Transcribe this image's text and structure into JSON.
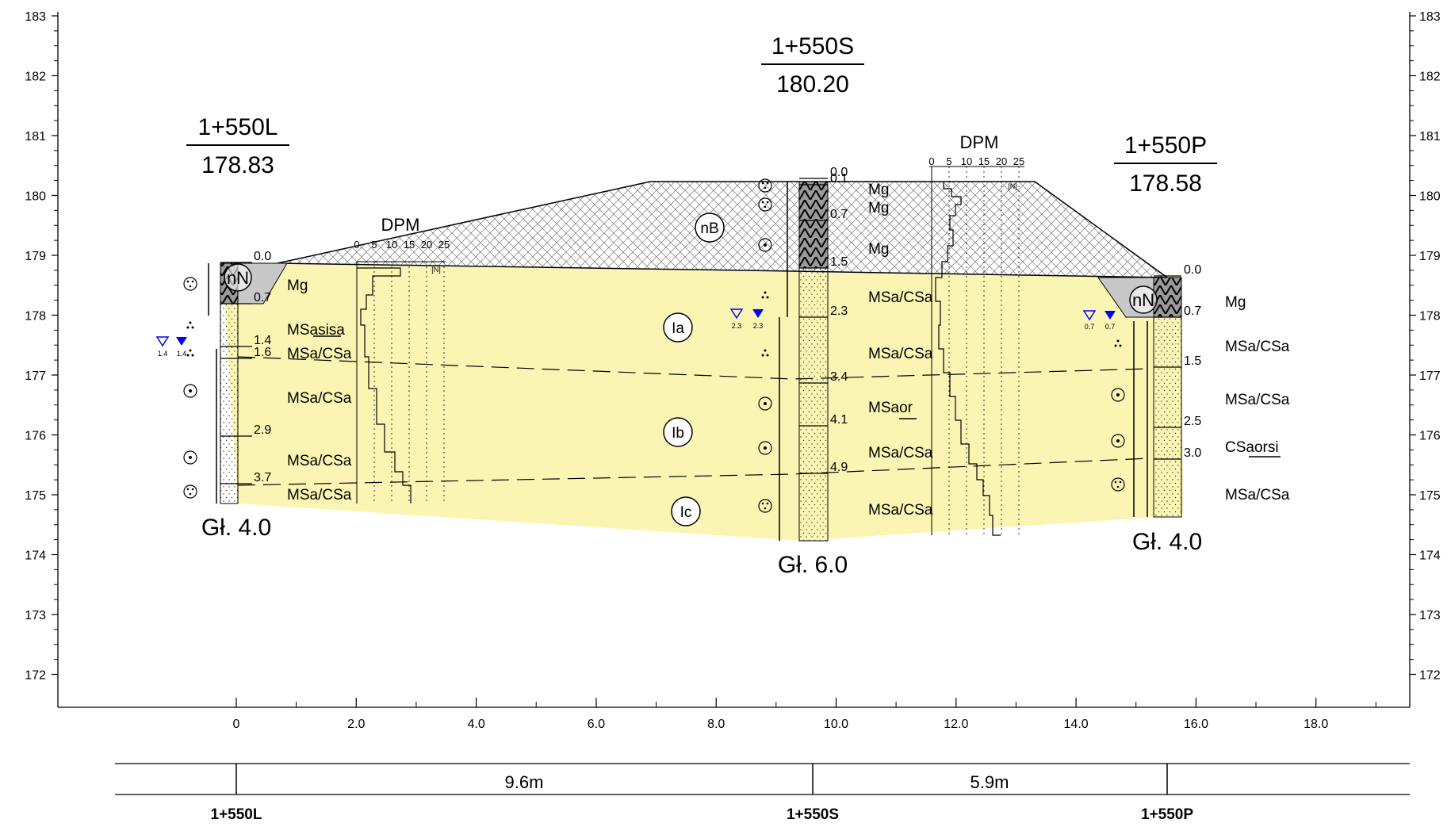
{
  "elevation_axis": {
    "ticks": [
      "183",
      "182",
      "181",
      "180",
      "179",
      "178",
      "177",
      "176",
      "175",
      "174",
      "173",
      "172"
    ]
  },
  "distance_axis": {
    "ticks": [
      "0",
      "2.0",
      "4.0",
      "6.0",
      "8.0",
      "10.0",
      "12.0",
      "14.0",
      "16.0",
      "18.0"
    ]
  },
  "boreholes": {
    "left": {
      "name": "1+550L",
      "elevation": "178.83",
      "depth": "Gł. 4.0",
      "depth_marks": [
        "0.0",
        "0.7",
        "1.4",
        "1.6",
        "2.9",
        "3.7"
      ],
      "soils": [
        "Mg",
        "MSasisa",
        "MSa/CSa",
        "MSa/CSa",
        "MSa/CSa",
        "MSa/CSa"
      ],
      "water_level": "1.4",
      "water_level_stable": "1.4",
      "dpm": {
        "title": "DPM",
        "scale": [
          "0",
          "5",
          "10",
          "15",
          "20",
          "25"
        ],
        "unit": "[N]"
      },
      "layer_tag": "nN"
    },
    "center": {
      "name": "1+550S",
      "elevation": "180.20",
      "depth": "Gł. 6.0",
      "depth_marks": [
        "0.0",
        "0.1",
        "0.7",
        "1.5",
        "2.3",
        "3.4",
        "4.1",
        "4.9"
      ],
      "soils": [
        "Mg",
        "Mg",
        "Mg",
        "MSa/CSa",
        "MSa/CSa",
        "MSaor",
        "MSa/CSa",
        "MSa/CSa"
      ],
      "water_level": "2.3",
      "water_level_stable": "2.3",
      "dpm": {
        "title": "DPM",
        "scale": [
          "0",
          "5",
          "10",
          "15",
          "20",
          "25"
        ],
        "unit": "[N]"
      },
      "layer_tag": "nB"
    },
    "right": {
      "name": "1+550P",
      "elevation": "178.58",
      "depth": "Gł. 4.0",
      "depth_marks": [
        "0.0",
        "0.7",
        "1.5",
        "2.5",
        "3.0"
      ],
      "soils": [
        "Mg",
        "MSa/CSa",
        "MSa/CSa",
        "CSaorsi",
        "MSa/CSa"
      ],
      "water_level": "0.7",
      "water_level_stable": "0.7",
      "layer_tag": "nN"
    }
  },
  "layers": {
    "ia": "Ia",
    "ib": "Ib",
    "ic": "Ic"
  },
  "spacing": {
    "left_center": "9.6m",
    "center_right": "5.9m"
  },
  "colors": {
    "soil_fill": "#FBF5B3",
    "fill_gray": "#C8C8C8",
    "water": "#0000FF"
  }
}
